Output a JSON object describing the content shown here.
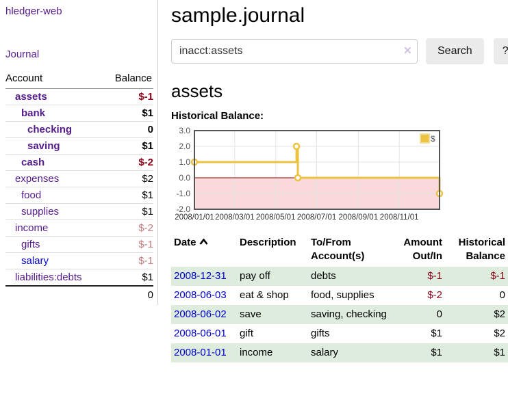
{
  "sidebar": {
    "brand": "hledger-web",
    "journal_label": "Journal",
    "accounts_table": {
      "headers": {
        "account": "Account",
        "balance": "Balance"
      },
      "rows": [
        {
          "name": "assets",
          "balance": "$-1",
          "depth": 1,
          "current": true,
          "neg": "strong"
        },
        {
          "name": "bank",
          "balance": "$1",
          "depth": 2,
          "current": true
        },
        {
          "name": "checking",
          "balance": "0",
          "depth": 3,
          "current": true
        },
        {
          "name": "saving",
          "balance": "$1",
          "depth": 3,
          "current": true
        },
        {
          "name": "cash",
          "balance": "$-2",
          "depth": 2,
          "current": true,
          "neg": "strong"
        },
        {
          "name": "expenses",
          "balance": "$2",
          "depth": 1
        },
        {
          "name": "food",
          "balance": "$1",
          "depth": 2
        },
        {
          "name": "supplies",
          "balance": "$1",
          "depth": 2
        },
        {
          "name": "income",
          "balance": "$-2",
          "depth": 1,
          "neg": "muted"
        },
        {
          "name": "gifts",
          "balance": "$-1",
          "depth": 2,
          "neg": "muted"
        },
        {
          "name": "salary",
          "balance": "$-1",
          "depth": 2,
          "neg": "muted",
          "unvisited": true
        },
        {
          "name": "liabilities:debts",
          "balance": "$1",
          "depth": 1
        }
      ],
      "total": "0"
    }
  },
  "main": {
    "title": "sample.journal",
    "search": {
      "value": "inacct:assets",
      "clear_icon": "×",
      "button_label": "Search",
      "help_label": "?"
    },
    "account_heading": "assets",
    "chart_heading": "Historical Balance:"
  },
  "chart_data": {
    "type": "line",
    "style": "steps",
    "title": "Historical Balance",
    "series": [
      {
        "name": "$",
        "color": "#edc240",
        "points": [
          [
            "2008/01/01",
            1.0
          ],
          [
            "2008/06/01",
            2.0
          ],
          [
            "2008/06/03",
            0.0
          ],
          [
            "2008/12/31",
            -1.0
          ]
        ]
      }
    ],
    "x_ticks": [
      "2008/01/01",
      "2008/03/01",
      "2008/05/01",
      "2008/07/01",
      "2008/09/01",
      "2008/11/01"
    ],
    "y_ticks": [
      3.0,
      2.0,
      1.0,
      0.0,
      -1.0,
      -2.0
    ],
    "ylim": [
      -2.0,
      3.0
    ],
    "x_range_days": [
      0,
      365
    ],
    "grid": true,
    "legend_position": "top-right",
    "legend_label": "$",
    "colors": {
      "line": "#edc240",
      "marker_fill": "#ffffff",
      "negative_region": "#f9d9d9",
      "zero_line": "#8b0000",
      "gridline": "#e3e3e3",
      "border": "#555555"
    }
  },
  "register": {
    "headers": {
      "date": "Date",
      "description": "Description",
      "accounts": "To/From Account(s)",
      "amount": "Amount Out/In",
      "balance": "Historical Balance"
    },
    "rows": [
      {
        "date": "2008-12-31",
        "description": "pay off",
        "accounts": "debts",
        "amount": "$-1",
        "amount_neg": true,
        "balance": "$-1",
        "balance_neg": true
      },
      {
        "date": "2008-06-03",
        "description": "eat & shop",
        "accounts": "food, supplies",
        "amount": "$-2",
        "amount_neg": true,
        "balance": "0"
      },
      {
        "date": "2008-06-02",
        "description": "save",
        "accounts": "saving, checking",
        "amount": "0",
        "balance": "$2"
      },
      {
        "date": "2008-06-01",
        "description": "gift",
        "accounts": "gifts",
        "amount": "$1",
        "balance": "$2"
      },
      {
        "date": "2008-01-01",
        "description": "income",
        "accounts": "salary",
        "amount": "$1",
        "balance": "$1"
      }
    ]
  }
}
